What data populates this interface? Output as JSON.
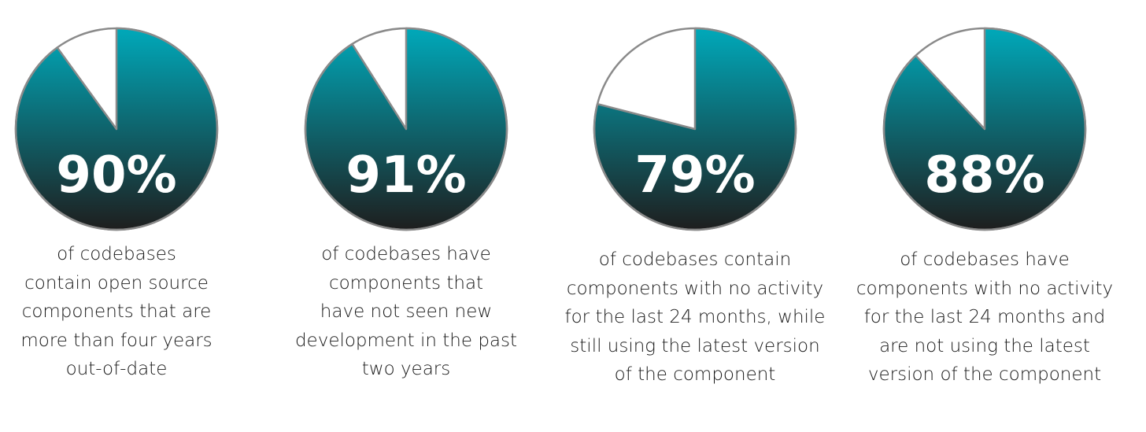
{
  "chart_data": [
    {
      "type": "pie",
      "values": [
        90,
        10
      ],
      "label": "90%",
      "caption": [
        "of codebases",
        "contain open source",
        "components that are",
        "more than four years",
        "out-of-date"
      ]
    },
    {
      "type": "pie",
      "values": [
        91,
        9
      ],
      "label": "91%",
      "caption": [
        "of codebases have",
        "components that",
        "have not seen new",
        "development in the past",
        "two years"
      ]
    },
    {
      "type": "pie",
      "values": [
        79,
        21
      ],
      "label": "79%",
      "caption": [
        "of codebases contain",
        "components with no activity",
        "for the last 24 months, while",
        "still using the latest version",
        "of the component"
      ]
    },
    {
      "type": "pie",
      "values": [
        88,
        12
      ],
      "label": "88%",
      "caption": [
        "of codebases have",
        "components with no activity",
        "for the last 24 months and",
        "are not using the latest",
        "version of the component"
      ]
    }
  ],
  "colors": {
    "slice_top": "#00a9ba",
    "slice_bottom": "#1e1e1e",
    "remainder": "#ffffff",
    "outline": "#8a8a8a",
    "caption_text": "#1a1a1a"
  }
}
